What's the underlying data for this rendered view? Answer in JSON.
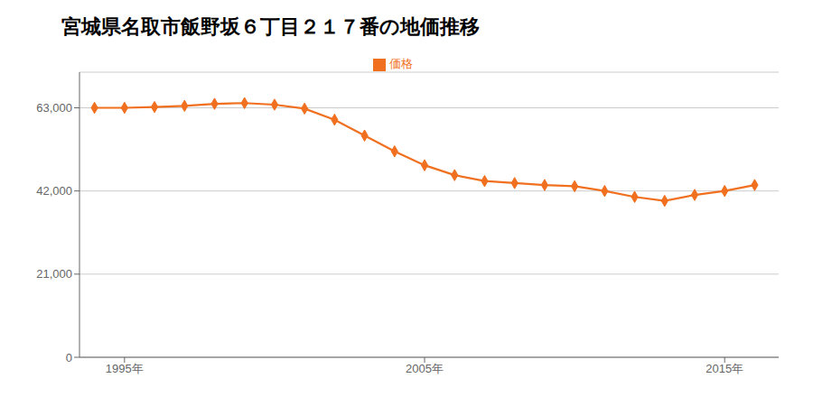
{
  "chart_data": {
    "type": "line",
    "title": "宮城県名取市飯野坂６丁目２１７番の地価推移",
    "x": [
      1994,
      1995,
      1996,
      1997,
      1998,
      1999,
      2000,
      2001,
      2002,
      2003,
      2004,
      2005,
      2006,
      2007,
      2008,
      2009,
      2010,
      2011,
      2012,
      2013,
      2014,
      2015,
      2016
    ],
    "series": [
      {
        "name": "価格",
        "color": "#f07020",
        "marker": "diamond",
        "values": [
          63000,
          63000,
          63200,
          63500,
          64000,
          64200,
          63800,
          62800,
          60000,
          56000,
          52000,
          48500,
          46000,
          44500,
          44000,
          43500,
          43200,
          42000,
          40500,
          39500,
          41000,
          42000,
          43500
        ]
      }
    ],
    "xlim": [
      1993.5,
      2016.8
    ],
    "xticks": [
      {
        "value": 1995,
        "label": "1995年"
      },
      {
        "value": 2005,
        "label": "2005年"
      },
      {
        "value": 2015,
        "label": "2015年"
      }
    ],
    "ylim": [
      0,
      72000
    ],
    "yticks": [
      0,
      {
        "value": 21000,
        "label": "21,000"
      },
      {
        "value": 42000,
        "label": "42,000"
      },
      {
        "value": 63000,
        "label": "63,000"
      }
    ],
    "grid": "y",
    "legend": "top"
  }
}
